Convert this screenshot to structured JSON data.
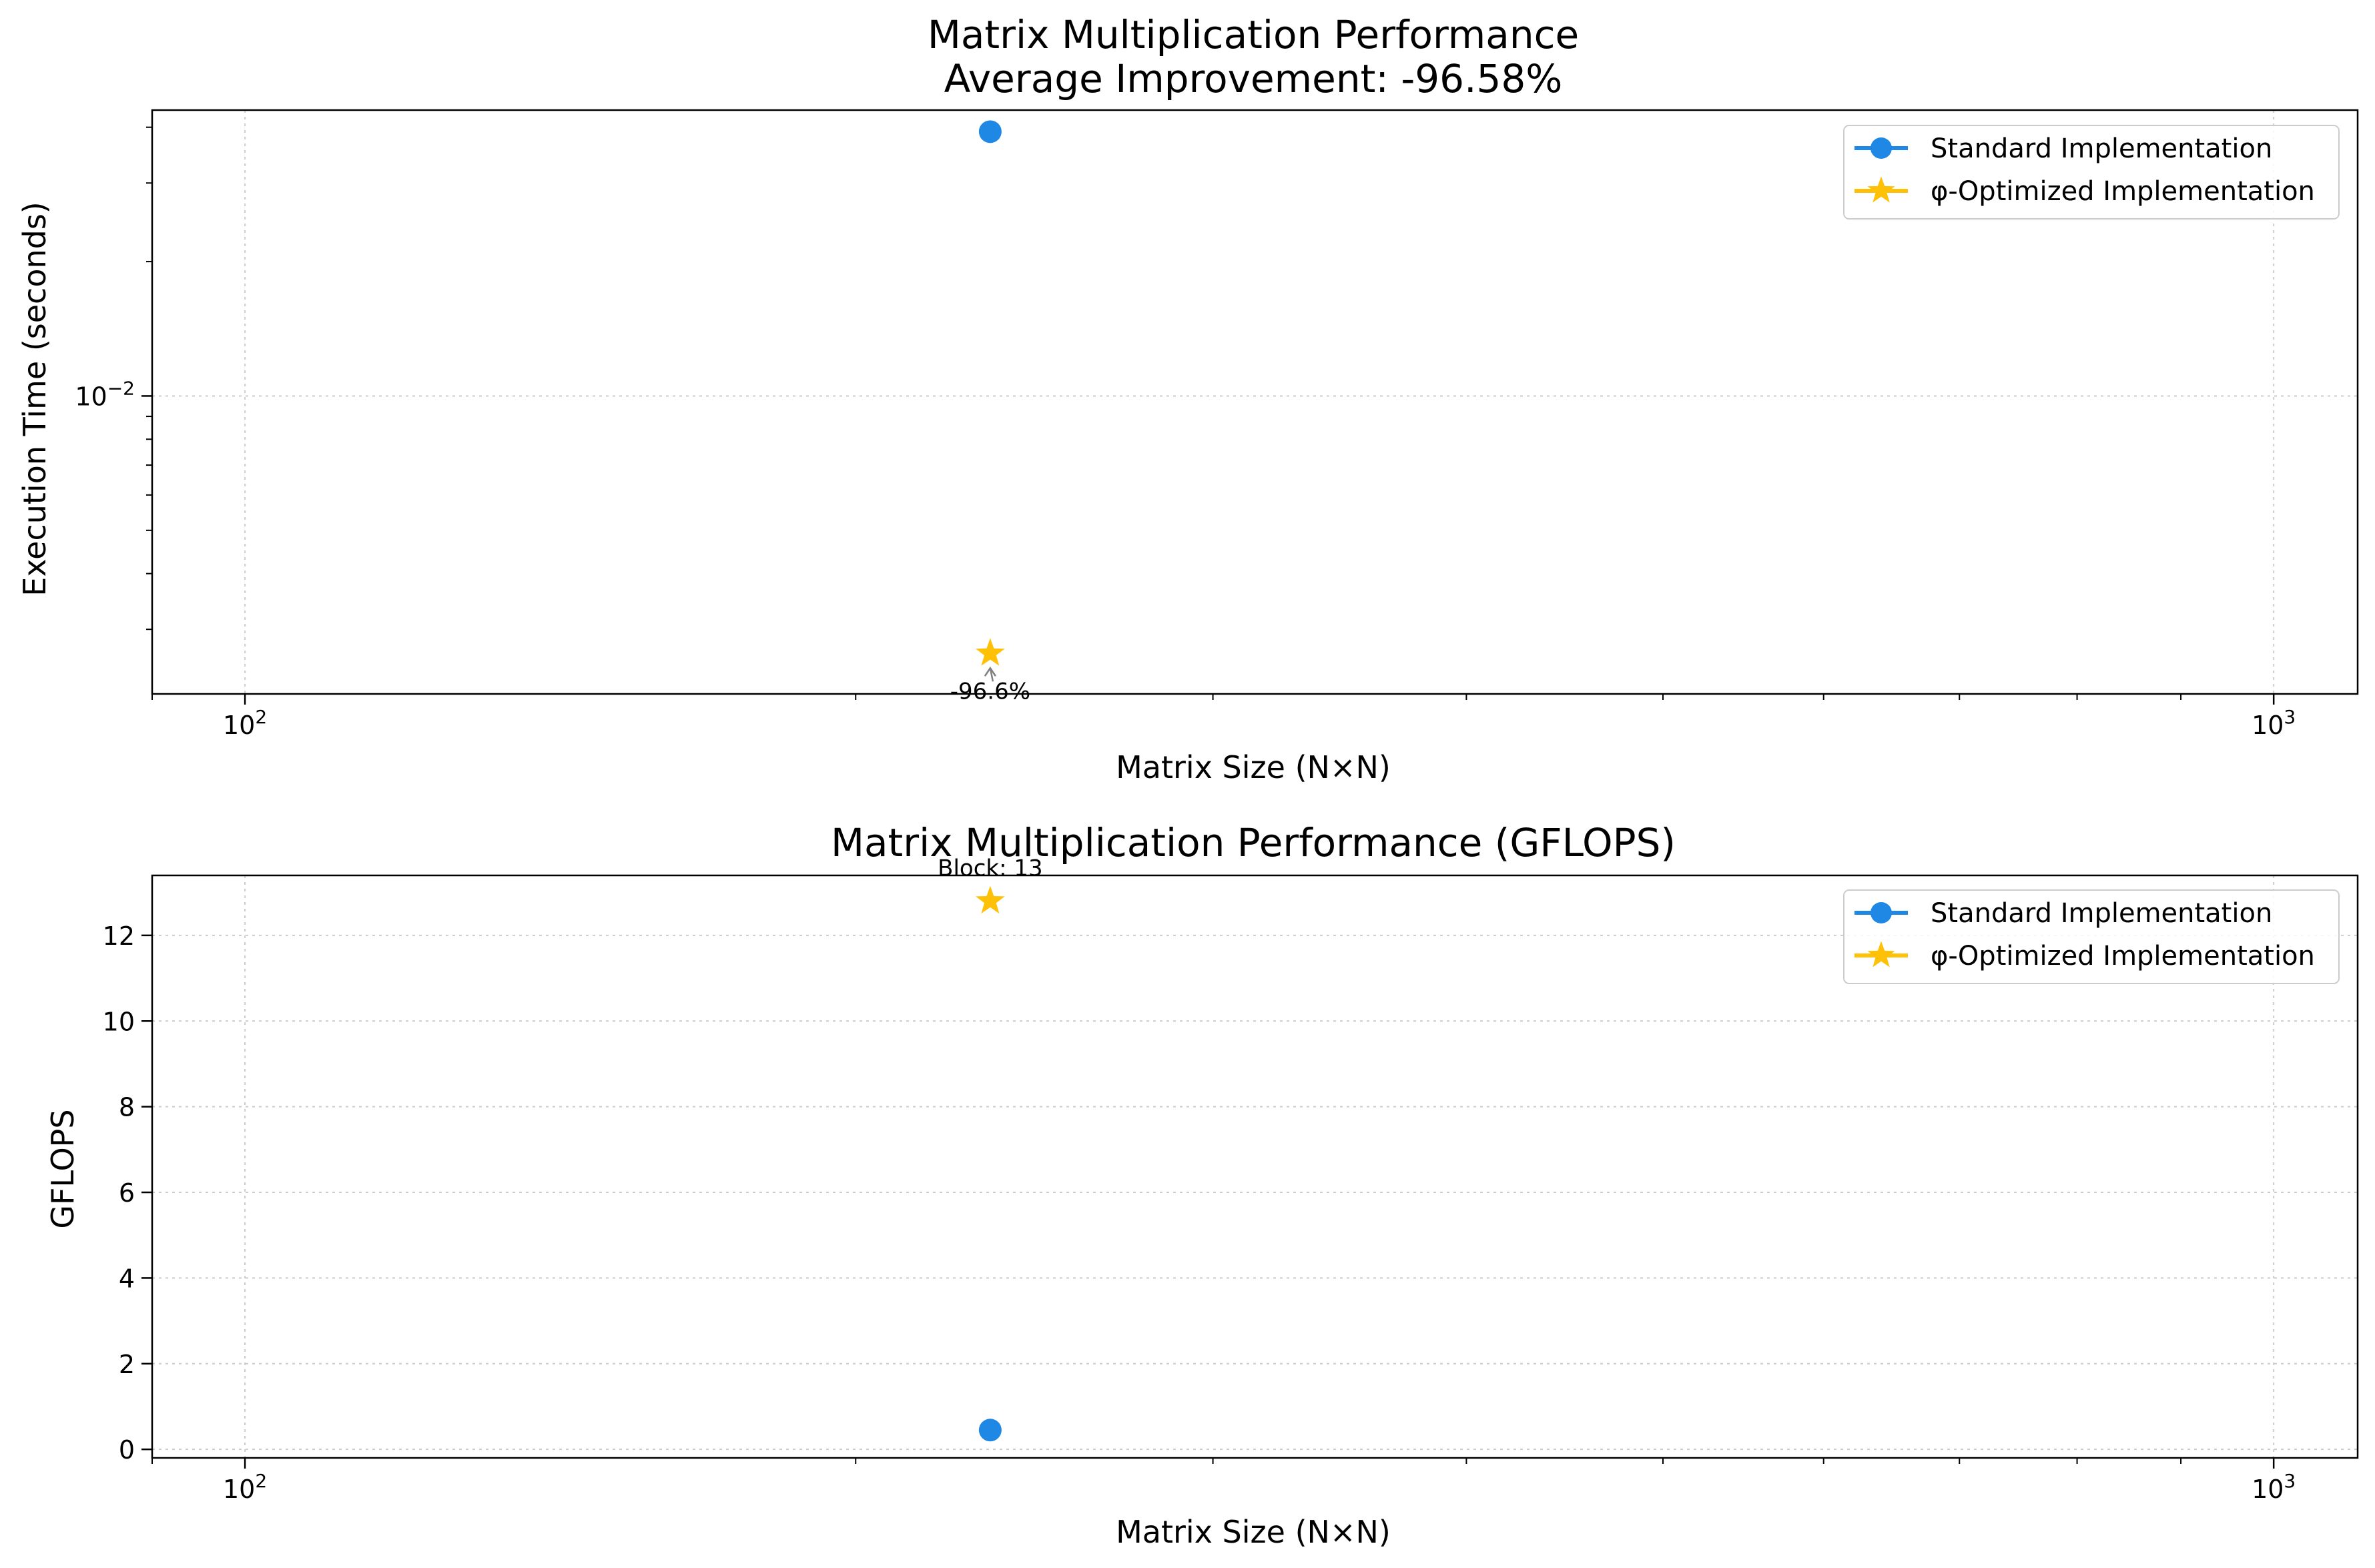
{
  "colors": {
    "standard": "#1f88e5",
    "optimized": "#ffc107",
    "grid": "#cccccc",
    "axes": "#000000",
    "background": "#ffffff",
    "legend_border": "#cccccc",
    "arrow": "#808080"
  },
  "chart_data": [
    {
      "type": "scatter",
      "title": "Matrix Multiplication Performance",
      "subtitle": "Average Improvement: -96.58%",
      "xlabel": "Matrix Size (N×N)",
      "ylabel": "Execution Time (seconds)",
      "x_scale": "log",
      "y_scale": "log",
      "xlim": [
        90,
        1100
      ],
      "ylim": [
        0.00215,
        0.0437
      ],
      "grid": true,
      "legend_position": "top-right",
      "x_ticks": [
        {
          "value": 100,
          "base": "10",
          "exp": "2"
        },
        {
          "value": 1000,
          "base": "10",
          "exp": "3"
        }
      ],
      "y_ticks": [
        {
          "value": 0.01,
          "base": "10",
          "exp": "−2"
        }
      ],
      "series": [
        {
          "name": "Standard Implementation",
          "marker": "circle",
          "color": "#1f88e5",
          "x": [
            233
          ],
          "y": [
            0.0391
          ]
        },
        {
          "name": "φ-Optimized Implementation",
          "marker": "star",
          "color": "#ffc107",
          "x": [
            233
          ],
          "y": [
            0.00265
          ]
        }
      ],
      "annotations": [
        {
          "text": "-96.6%",
          "x": 233,
          "y": 0.00265,
          "arrow": true
        }
      ]
    },
    {
      "type": "scatter",
      "title": "Matrix Multiplication Performance (GFLOPS)",
      "xlabel": "Matrix Size (N×N)",
      "ylabel": "GFLOPS",
      "x_scale": "log",
      "y_scale": "linear",
      "xlim": [
        90,
        1100
      ],
      "ylim": [
        -0.2,
        13.4
      ],
      "grid": true,
      "legend_position": "top-right",
      "x_ticks": [
        {
          "value": 100,
          "base": "10",
          "exp": "2"
        },
        {
          "value": 1000,
          "base": "10",
          "exp": "3"
        }
      ],
      "y_ticks": [
        {
          "value": 0,
          "label": "0"
        },
        {
          "value": 2,
          "label": "2"
        },
        {
          "value": 4,
          "label": "4"
        },
        {
          "value": 6,
          "label": "6"
        },
        {
          "value": 8,
          "label": "8"
        },
        {
          "value": 10,
          "label": "10"
        },
        {
          "value": 12,
          "label": "12"
        }
      ],
      "series": [
        {
          "name": "Standard Implementation",
          "marker": "circle",
          "color": "#1f88e5",
          "x": [
            233
          ],
          "y": [
            0.45
          ]
        },
        {
          "name": "φ-Optimized Implementation",
          "marker": "star",
          "color": "#ffc107",
          "x": [
            233
          ],
          "y": [
            12.8
          ]
        }
      ],
      "annotations": [
        {
          "text": "Block: 13",
          "x": 233,
          "y": 12.8,
          "arrow": false
        }
      ]
    }
  ]
}
